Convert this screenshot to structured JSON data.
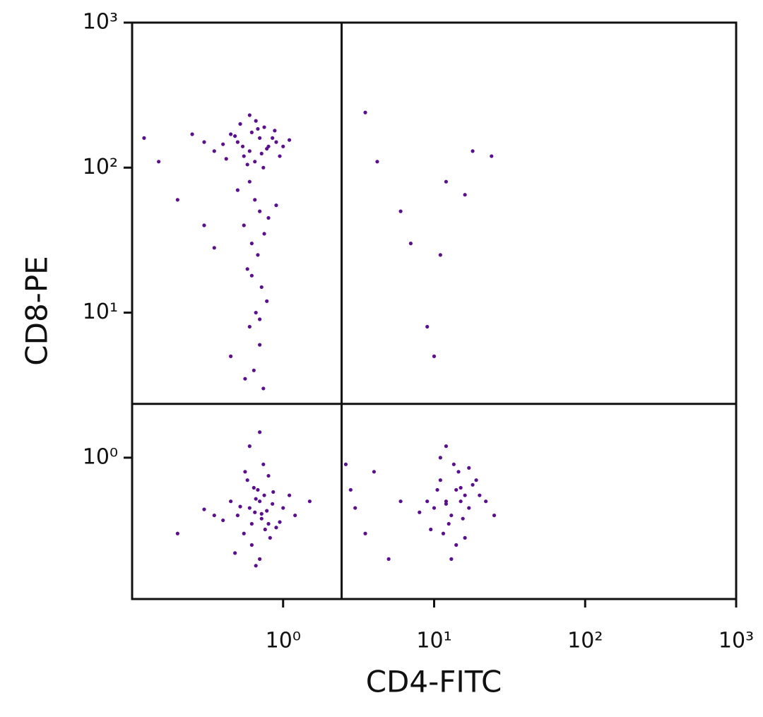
{
  "chart_data": {
    "type": "scatter",
    "x_label": "CD4-FITC",
    "y_label": "CD8-PE",
    "log_x": true,
    "log_y": true,
    "color": "#5a0f8c",
    "xlim": [
      0.1,
      1000
    ],
    "ylim": [
      0.106,
      1000
    ],
    "xticks": [
      {
        "value": 1,
        "label": "10⁰"
      },
      {
        "value": 10,
        "label": "10¹"
      },
      {
        "value": 100,
        "label": "10²"
      },
      {
        "value": 1000,
        "label": "10³"
      }
    ],
    "yticks": [
      {
        "value": 1,
        "label": "10⁰"
      },
      {
        "value": 10,
        "label": "10¹"
      },
      {
        "value": 100,
        "label": "10²"
      },
      {
        "value": 1000,
        "label": "10³"
      }
    ],
    "gates": {
      "x": 2.44,
      "y": 2.35
    },
    "x": [
      0.5,
      0.6,
      0.7,
      0.55,
      0.8,
      0.45,
      0.65,
      0.9,
      0.75,
      0.35,
      0.4,
      0.52,
      0.62,
      0.72,
      0.85,
      1.0,
      0.3,
      0.58,
      0.68,
      0.48,
      0.78,
      0.95,
      1.1,
      0.25,
      0.42,
      0.66,
      0.54,
      0.74,
      0.88,
      0.6,
      0.6,
      0.65,
      0.7,
      0.55,
      0.75,
      0.62,
      0.68,
      0.58,
      0.72,
      0.5,
      0.8,
      0.66,
      0.6,
      0.7,
      0.45,
      0.78,
      0.64,
      0.56,
      0.74,
      0.35,
      0.9,
      0.62,
      0.7,
      0.15,
      0.2,
      0.12,
      0.3,
      0.5,
      0.6,
      0.7,
      0.8,
      0.65,
      0.75,
      0.55,
      0.85,
      0.72,
      0.68,
      0.62,
      0.78,
      0.9,
      0.45,
      0.4,
      1.0,
      0.58,
      0.82,
      0.66,
      0.7,
      0.35,
      0.74,
      0.52,
      0.95,
      1.1,
      0.6,
      0.76,
      0.64,
      0.3,
      1.2,
      0.48,
      0.86,
      0.7,
      0.66,
      0.8,
      0.56,
      0.72,
      0.62,
      0.2,
      1.5,
      12,
      14,
      10,
      16,
      11,
      13,
      15,
      18,
      9,
      12.5,
      14.5,
      11.5,
      17,
      20,
      10.5,
      13.5,
      15.5,
      8,
      22,
      12,
      16,
      14,
      11,
      19,
      13,
      25,
      9.5,
      15,
      12,
      17,
      2.8,
      3.5,
      4,
      5,
      3,
      6,
      2.6,
      3.5,
      4.2,
      7,
      9,
      12,
      18,
      24,
      10,
      11,
      16,
      6
    ],
    "values": [
      150,
      130,
      160,
      120,
      140,
      170,
      110,
      150,
      190,
      130,
      145,
      200,
      175,
      125,
      160,
      140,
      150,
      105,
      185,
      165,
      135,
      120,
      155,
      170,
      115,
      210,
      140,
      100,
      180,
      230,
      80,
      60,
      50,
      40,
      35,
      30,
      25,
      20,
      15,
      70,
      45,
      10,
      8,
      6,
      5,
      12,
      4,
      3.5,
      3,
      28,
      55,
      18,
      9,
      110,
      60,
      160,
      40,
      0.4,
      0.45,
      0.5,
      0.35,
      0.42,
      0.55,
      0.3,
      0.48,
      0.38,
      0.6,
      0.25,
      0.43,
      0.33,
      0.5,
      0.37,
      0.45,
      0.7,
      0.28,
      0.52,
      0.2,
      0.4,
      0.9,
      0.46,
      0.36,
      0.55,
      1.2,
      0.32,
      0.62,
      0.44,
      0.4,
      0.22,
      0.58,
      1.5,
      0.18,
      0.75,
      0.8,
      0.41,
      0.35,
      0.3,
      0.5,
      0.5,
      0.6,
      0.45,
      0.55,
      0.7,
      0.4,
      0.5,
      0.65,
      0.5,
      0.35,
      0.8,
      0.3,
      0.45,
      0.55,
      0.6,
      0.9,
      0.38,
      0.42,
      0.5,
      1.2,
      0.28,
      0.25,
      1.0,
      0.7,
      0.2,
      0.4,
      0.32,
      0.62,
      0.48,
      0.85,
      0.6,
      0.3,
      0.8,
      0.2,
      0.45,
      0.5,
      0.9,
      240,
      110,
      30,
      8,
      80,
      130,
      120,
      5,
      25,
      65,
      50
    ]
  }
}
